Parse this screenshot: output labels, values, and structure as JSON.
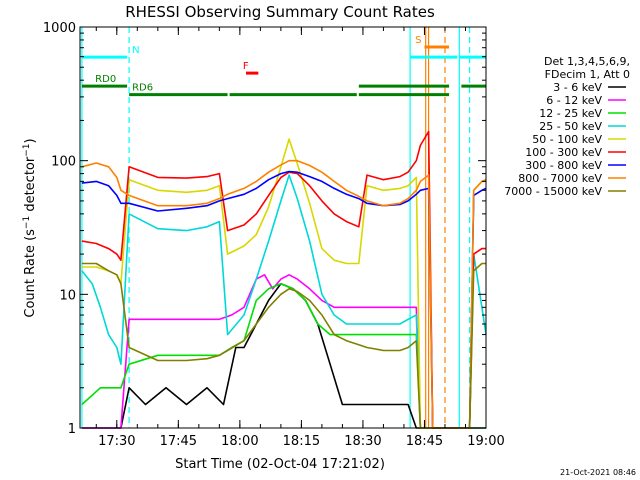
{
  "chart_data": {
    "type": "line",
    "title": "RHESSI Observing Summary Count Rates",
    "xlabel": "Start Time (02-Oct-04 17:21:02)",
    "ylabel_prefix": "Count Rate (s",
    "ylabel_sup": "−1",
    "ylabel_mid": " detector",
    "ylabel_suffix": ")",
    "y_scale": "log",
    "ylim": [
      1,
      1000
    ],
    "xlim_minutes": [
      21.03,
      120
    ],
    "x_ticks": [
      {
        "label": "17:30",
        "t": 30
      },
      {
        "label": "17:45",
        "t": 45
      },
      {
        "label": "18:00",
        "t": 60
      },
      {
        "label": "18:15",
        "t": 75
      },
      {
        "label": "18:30",
        "t": 90
      },
      {
        "label": "18:45",
        "t": 105
      },
      {
        "label": "19:00",
        "t": 120
      }
    ],
    "y_ticks": [
      {
        "label": "1",
        "v": 1
      },
      {
        "label": "10",
        "v": 10
      },
      {
        "label": "100",
        "v": 100
      },
      {
        "label": "1000",
        "v": 1000
      }
    ],
    "legend_header": [
      "Det 1,3,4,5,6,9,",
      "FDecim 1, Att 0"
    ],
    "footer_date": "21-Oct-2021 08:46",
    "series": [
      {
        "name": "3 - 6 keV",
        "color": "#000000",
        "points": [
          [
            21.5,
            1
          ],
          [
            27,
            1
          ],
          [
            31,
            1
          ],
          [
            33,
            2
          ],
          [
            37,
            1.5
          ],
          [
            42,
            2
          ],
          [
            47,
            1.5
          ],
          [
            52,
            2
          ],
          [
            56,
            1.5
          ],
          [
            59,
            4
          ],
          [
            61,
            4
          ],
          [
            64,
            6
          ],
          [
            67,
            9
          ],
          [
            70,
            12
          ],
          [
            73,
            11
          ],
          [
            76,
            9
          ],
          [
            79,
            6
          ],
          [
            82,
            3
          ],
          [
            85,
            1.5
          ],
          [
            89,
            1.5
          ],
          [
            93,
            1.5
          ],
          [
            97,
            1.5
          ],
          [
            101,
            1.5
          ],
          [
            103,
            1
          ],
          [
            120,
            1
          ]
        ]
      },
      {
        "name": "6 - 12 keV",
        "color": "#ff00ff",
        "points": [
          [
            21.5,
            1
          ],
          [
            27,
            1
          ],
          [
            31,
            1
          ],
          [
            33,
            6.5
          ],
          [
            40,
            6.5
          ],
          [
            47,
            6.5
          ],
          [
            55,
            6.5
          ],
          [
            58,
            7
          ],
          [
            61,
            8
          ],
          [
            64,
            13
          ],
          [
            66,
            14
          ],
          [
            68,
            11
          ],
          [
            70,
            13
          ],
          [
            72,
            14
          ],
          [
            74,
            13
          ],
          [
            77,
            11
          ],
          [
            80,
            9
          ],
          [
            83,
            8
          ],
          [
            86,
            8
          ],
          [
            90,
            8
          ],
          [
            95,
            8
          ],
          [
            101,
            8
          ],
          [
            103,
            8
          ],
          [
            104,
            1
          ],
          [
            120,
            1
          ]
        ]
      },
      {
        "name": "12 - 25 keV",
        "color": "#00e000",
        "points": [
          [
            21.5,
            1.5
          ],
          [
            26,
            2
          ],
          [
            31,
            2
          ],
          [
            33,
            3
          ],
          [
            40,
            3.5
          ],
          [
            45,
            3.5
          ],
          [
            50,
            3.5
          ],
          [
            55,
            3.5
          ],
          [
            58,
            4
          ],
          [
            61,
            4.5
          ],
          [
            64,
            9
          ],
          [
            67,
            11
          ],
          [
            70,
            12
          ],
          [
            73,
            11
          ],
          [
            76,
            9
          ],
          [
            79,
            6
          ],
          [
            82,
            5
          ],
          [
            86,
            5
          ],
          [
            90,
            5
          ],
          [
            95,
            5
          ],
          [
            100,
            5
          ],
          [
            103,
            5
          ],
          [
            104,
            1
          ],
          [
            120,
            1
          ]
        ]
      },
      {
        "name": "25 - 50 keV",
        "color": "#00d8d8",
        "points": [
          [
            21.5,
            15
          ],
          [
            24,
            12
          ],
          [
            26,
            8
          ],
          [
            28,
            5
          ],
          [
            30,
            4
          ],
          [
            31,
            3
          ],
          [
            33,
            40
          ],
          [
            40,
            31
          ],
          [
            47,
            30
          ],
          [
            52,
            32
          ],
          [
            55,
            35
          ],
          [
            57,
            5
          ],
          [
            61,
            7
          ],
          [
            64,
            13
          ],
          [
            67,
            25
          ],
          [
            70,
            50
          ],
          [
            72,
            78
          ],
          [
            74,
            52
          ],
          [
            77,
            25
          ],
          [
            80,
            10
          ],
          [
            83,
            7
          ],
          [
            86,
            6
          ],
          [
            89,
            6
          ],
          [
            91,
            6
          ],
          [
            95,
            6
          ],
          [
            99,
            6
          ],
          [
            101,
            6.5
          ],
          [
            103,
            7
          ],
          [
            104,
            1
          ],
          [
            116,
            1
          ],
          [
            117,
            20
          ],
          [
            119,
            8
          ],
          [
            120,
            5
          ]
        ]
      },
      {
        "name": "50 - 100 keV",
        "color": "#d8d800",
        "points": [
          [
            21.5,
            16
          ],
          [
            25,
            16
          ],
          [
            28,
            15
          ],
          [
            30,
            14
          ],
          [
            31,
            12
          ],
          [
            33,
            72
          ],
          [
            40,
            60
          ],
          [
            47,
            58
          ],
          [
            52,
            60
          ],
          [
            55,
            65
          ],
          [
            57,
            20
          ],
          [
            61,
            23
          ],
          [
            64,
            28
          ],
          [
            67,
            45
          ],
          [
            70,
            90
          ],
          [
            72,
            145
          ],
          [
            74,
            95
          ],
          [
            77,
            48
          ],
          [
            80,
            22
          ],
          [
            83,
            18
          ],
          [
            86,
            17
          ],
          [
            89,
            17
          ],
          [
            91,
            65
          ],
          [
            95,
            60
          ],
          [
            99,
            62
          ],
          [
            101,
            65
          ],
          [
            103,
            75
          ],
          [
            104,
            1
          ],
          [
            116,
            1
          ],
          [
            117,
            60
          ],
          [
            119,
            70
          ],
          [
            120,
            70
          ]
        ]
      },
      {
        "name": "100 - 300 keV",
        "color": "#ff0000",
        "points": [
          [
            21.5,
            25
          ],
          [
            25,
            24
          ],
          [
            28,
            22
          ],
          [
            30,
            20
          ],
          [
            31,
            18
          ],
          [
            33,
            90
          ],
          [
            40,
            75
          ],
          [
            47,
            74
          ],
          [
            52,
            76
          ],
          [
            55,
            80
          ],
          [
            57,
            30
          ],
          [
            61,
            33
          ],
          [
            64,
            40
          ],
          [
            67,
            55
          ],
          [
            70,
            75
          ],
          [
            72,
            82
          ],
          [
            74,
            80
          ],
          [
            77,
            65
          ],
          [
            80,
            50
          ],
          [
            83,
            40
          ],
          [
            86,
            35
          ],
          [
            89,
            32
          ],
          [
            91,
            78
          ],
          [
            95,
            72
          ],
          [
            99,
            76
          ],
          [
            101,
            82
          ],
          [
            103,
            100
          ],
          [
            104,
            130
          ],
          [
            106,
            165
          ],
          [
            107,
            1
          ],
          [
            116,
            1
          ],
          [
            117,
            20
          ],
          [
            119,
            22
          ],
          [
            120,
            22
          ]
        ]
      },
      {
        "name": "300 - 800 keV",
        "color": "#0000ff",
        "points": [
          [
            21.5,
            68
          ],
          [
            25,
            70
          ],
          [
            28,
            65
          ],
          [
            30,
            55
          ],
          [
            31,
            48
          ],
          [
            33,
            48
          ],
          [
            40,
            42
          ],
          [
            47,
            44
          ],
          [
            52,
            46
          ],
          [
            55,
            50
          ],
          [
            57,
            52
          ],
          [
            61,
            56
          ],
          [
            64,
            62
          ],
          [
            67,
            72
          ],
          [
            70,
            80
          ],
          [
            72,
            83
          ],
          [
            74,
            82
          ],
          [
            77,
            76
          ],
          [
            80,
            70
          ],
          [
            83,
            62
          ],
          [
            86,
            56
          ],
          [
            89,
            52
          ],
          [
            91,
            48
          ],
          [
            95,
            46
          ],
          [
            99,
            47
          ],
          [
            101,
            50
          ],
          [
            103,
            56
          ],
          [
            104,
            60
          ],
          [
            106,
            62
          ],
          [
            107,
            1
          ],
          [
            116,
            1
          ],
          [
            117,
            55
          ],
          [
            119,
            60
          ],
          [
            120,
            62
          ]
        ]
      },
      {
        "name": "800 - 7000 keV",
        "color": "#ff8000",
        "points": [
          [
            21.5,
            90
          ],
          [
            25,
            96
          ],
          [
            28,
            90
          ],
          [
            30,
            75
          ],
          [
            31,
            60
          ],
          [
            33,
            55
          ],
          [
            40,
            46
          ],
          [
            47,
            46
          ],
          [
            52,
            48
          ],
          [
            55,
            52
          ],
          [
            57,
            56
          ],
          [
            61,
            62
          ],
          [
            64,
            70
          ],
          [
            67,
            82
          ],
          [
            70,
            93
          ],
          [
            72,
            100
          ],
          [
            74,
            100
          ],
          [
            77,
            92
          ],
          [
            80,
            82
          ],
          [
            83,
            70
          ],
          [
            86,
            60
          ],
          [
            89,
            54
          ],
          [
            91,
            50
          ],
          [
            95,
            46
          ],
          [
            99,
            48
          ],
          [
            101,
            52
          ],
          [
            103,
            60
          ],
          [
            104,
            70
          ],
          [
            106,
            78
          ],
          [
            107,
            1
          ],
          [
            116,
            1
          ],
          [
            117,
            60
          ],
          [
            119,
            70
          ],
          [
            120,
            72
          ]
        ]
      },
      {
        "name": "7000 - 15000 keV",
        "color": "#808000",
        "points": [
          [
            21.5,
            17
          ],
          [
            25,
            17
          ],
          [
            28,
            15
          ],
          [
            30,
            14
          ],
          [
            31,
            12
          ],
          [
            33,
            4
          ],
          [
            40,
            3.2
          ],
          [
            47,
            3.2
          ],
          [
            52,
            3.3
          ],
          [
            55,
            3.5
          ],
          [
            57,
            3.8
          ],
          [
            61,
            4.5
          ],
          [
            64,
            6
          ],
          [
            67,
            8
          ],
          [
            70,
            10
          ],
          [
            72,
            11
          ],
          [
            74,
            10.5
          ],
          [
            77,
            9
          ],
          [
            80,
            7
          ],
          [
            83,
            5
          ],
          [
            86,
            4.5
          ],
          [
            89,
            4.2
          ],
          [
            91,
            4
          ],
          [
            95,
            3.8
          ],
          [
            99,
            3.8
          ],
          [
            101,
            4
          ],
          [
            103,
            4.5
          ],
          [
            104,
            1
          ],
          [
            116,
            1
          ],
          [
            117,
            15
          ],
          [
            119,
            17
          ],
          [
            120,
            17
          ]
        ]
      }
    ],
    "state_bars": [
      {
        "label": "N",
        "label_t": 33,
        "color": "#00ffff",
        "y_frac": 0.06,
        "segments": [
          [
            21.5,
            32.5
          ],
          [
            101.5,
            113
          ],
          [
            113.5,
            120
          ]
        ]
      },
      {
        "label": "RD0",
        "label_t": 24,
        "color": "#008000",
        "y_frac": 0.118,
        "segments": [
          [
            21.5,
            32.5
          ]
        ]
      },
      {
        "label": "RD6",
        "label_t": 33,
        "color": "#008000",
        "y_frac": 0.135,
        "segments": [
          [
            33,
            57
          ],
          [
            57.5,
            88.5
          ],
          [
            89,
            111
          ]
        ]
      },
      {
        "label": "",
        "label_t": 0,
        "color": "#008000",
        "y_frac": 0.118,
        "segments": [
          [
            89,
            111
          ],
          [
            114,
            120
          ]
        ]
      },
      {
        "label": "F",
        "label_t": 60,
        "color": "#ff0000",
        "y_frac": 0.092,
        "segments": [
          [
            61.5,
            64.5
          ]
        ]
      },
      {
        "label": "S",
        "label_t": 102,
        "color": "#ff8000",
        "y_frac": 0.04,
        "segments": [
          [
            105,
            111
          ]
        ]
      }
    ],
    "markers": [
      {
        "t": 21.5,
        "color": "#00ffff",
        "style": "solid"
      },
      {
        "t": 33,
        "color": "#00ffff",
        "style": "dashed"
      },
      {
        "t": 101.5,
        "color": "#00ffff",
        "style": "solid"
      },
      {
        "t": 105.3,
        "color": "#ff8000",
        "style": "solid"
      },
      {
        "t": 106,
        "color": "#ff8000",
        "style": "solid"
      },
      {
        "t": 110,
        "color": "#ff8000",
        "style": "dashed"
      },
      {
        "t": 113.5,
        "color": "#00ffff",
        "style": "solid"
      },
      {
        "t": 116,
        "color": "#00ffff",
        "style": "dashed"
      }
    ]
  }
}
